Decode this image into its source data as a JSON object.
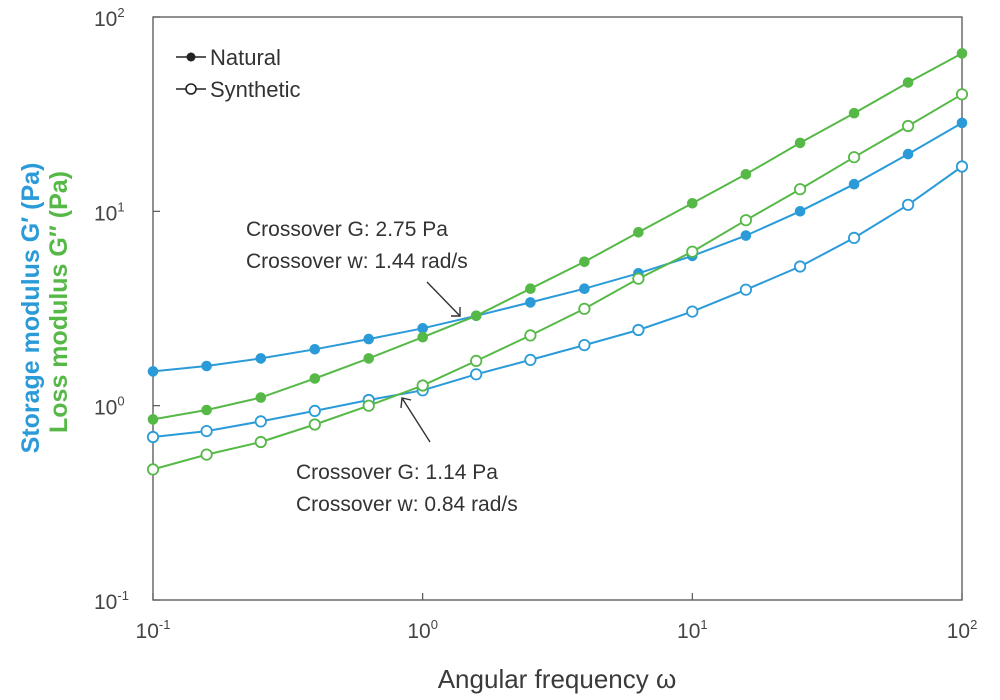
{
  "chart_data": {
    "type": "line",
    "xscale": "log",
    "yscale": "log",
    "xlim": [
      0.1,
      100
    ],
    "ylim": [
      0.1,
      100
    ],
    "xlabel": "Angular frequency ω",
    "ylabel_storage": "Storage modulus  G′ (Pa)",
    "ylabel_loss": "Loss modulus G″ (Pa)",
    "x_ticks": [
      {
        "base": "10",
        "exp": "-1",
        "value": 0.1
      },
      {
        "base": "10",
        "exp": "0",
        "value": 1
      },
      {
        "base": "10",
        "exp": "1",
        "value": 10
      },
      {
        "base": "10",
        "exp": "2",
        "value": 100
      }
    ],
    "y_ticks": [
      {
        "base": "10",
        "exp": "-1",
        "value": 0.1
      },
      {
        "base": "10",
        "exp": "0",
        "value": 1
      },
      {
        "base": "10",
        "exp": "1",
        "value": 10
      },
      {
        "base": "10",
        "exp": "2",
        "value": 100
      }
    ],
    "grid": false,
    "legend": {
      "position": "top-left",
      "entries": [
        {
          "label": "Natural",
          "marker": "filled"
        },
        {
          "label": "Synthetic",
          "marker": "open"
        }
      ]
    },
    "colors": {
      "storage": "#2a9bd8",
      "loss": "#56b947"
    },
    "x": [
      0.1,
      0.158,
      0.251,
      0.398,
      0.631,
      1.0,
      1.58,
      2.51,
      3.98,
      6.31,
      10.0,
      15.8,
      25.1,
      39.8,
      63.1,
      100
    ],
    "series": [
      {
        "id": "natural-storage",
        "modulus": "storage",
        "sample": "Natural",
        "marker": "filled",
        "values": [
          1.5,
          1.6,
          1.75,
          1.95,
          2.2,
          2.5,
          2.9,
          3.4,
          4.0,
          4.8,
          5.9,
          7.5,
          10.0,
          13.8,
          19.7,
          28.5
        ]
      },
      {
        "id": "natural-loss",
        "modulus": "loss",
        "sample": "Natural",
        "marker": "filled",
        "values": [
          0.85,
          0.95,
          1.1,
          1.38,
          1.75,
          2.25,
          2.9,
          4.0,
          5.5,
          7.8,
          11.0,
          15.5,
          22.5,
          32.0,
          46.0,
          65.0
        ]
      },
      {
        "id": "synthetic-storage",
        "modulus": "storage",
        "sample": "Synthetic",
        "marker": "open",
        "values": [
          0.69,
          0.74,
          0.83,
          0.94,
          1.07,
          1.2,
          1.45,
          1.72,
          2.05,
          2.45,
          3.05,
          3.95,
          5.2,
          7.3,
          10.8,
          17.0
        ]
      },
      {
        "id": "synthetic-loss",
        "modulus": "loss",
        "sample": "Synthetic",
        "marker": "open",
        "values": [
          0.47,
          0.56,
          0.65,
          0.8,
          1.0,
          1.27,
          1.7,
          2.3,
          3.15,
          4.5,
          6.2,
          9.0,
          13.0,
          19.0,
          27.5,
          40.0
        ]
      }
    ],
    "annotations": [
      {
        "id": "natural",
        "line1": "Crossover G: 2.75 Pa",
        "line2": "Crossover w: 1.44 rad/s",
        "crossover_x": 1.44,
        "crossover_y": 2.75
      },
      {
        "id": "synthetic",
        "line1": "Crossover G: 1.14 Pa",
        "line2": "Crossover w: 0.84 rad/s",
        "crossover_x": 0.84,
        "crossover_y": 1.14
      }
    ]
  }
}
